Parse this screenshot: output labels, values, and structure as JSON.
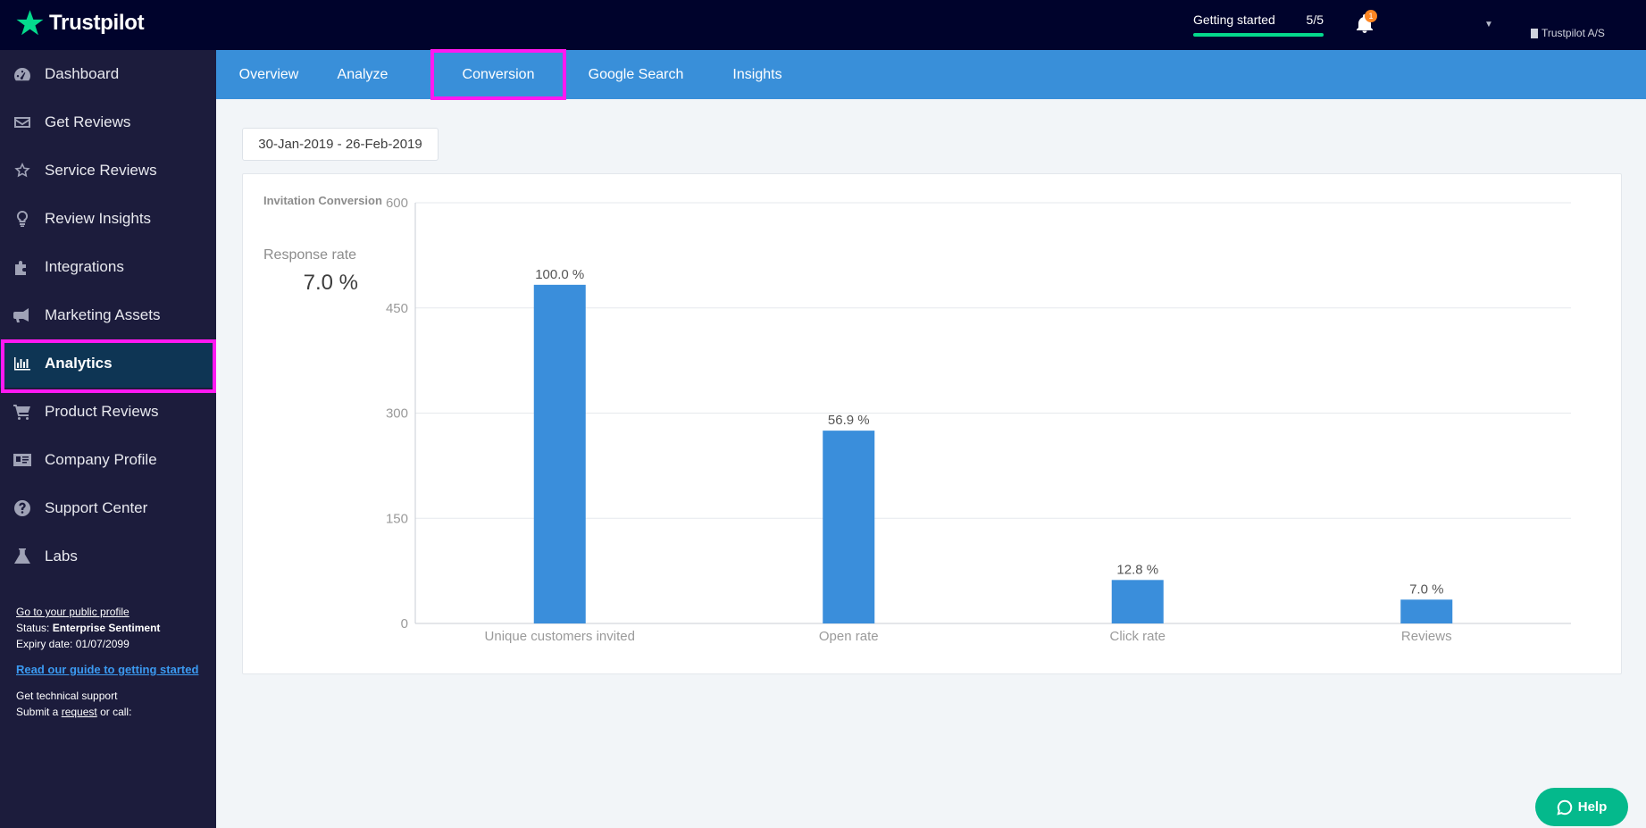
{
  "brand": {
    "name": "Trustpilot"
  },
  "header": {
    "getting_started_label": "Getting started",
    "getting_started_count": "5/5",
    "notification_count": "1",
    "company_name": "Trustpilot A/S"
  },
  "sidebar": {
    "items": [
      {
        "label": "Dashboard",
        "icon": "dashboard-icon"
      },
      {
        "label": "Get Reviews",
        "icon": "envelope-icon"
      },
      {
        "label": "Service Reviews",
        "icon": "star-icon"
      },
      {
        "label": "Review Insights",
        "icon": "lightbulb-icon"
      },
      {
        "label": "Integrations",
        "icon": "puzzle-icon"
      },
      {
        "label": "Marketing Assets",
        "icon": "megaphone-icon"
      },
      {
        "label": "Analytics",
        "icon": "bar-chart-icon",
        "active": true
      },
      {
        "label": "Product Reviews",
        "icon": "cart-icon"
      },
      {
        "label": "Company Profile",
        "icon": "id-card-icon"
      },
      {
        "label": "Support Center",
        "icon": "question-icon"
      },
      {
        "label": "Labs",
        "icon": "flask-icon"
      }
    ],
    "public_profile_link": "Go to your public profile",
    "status_label": "Status:",
    "status_value": "Enterprise Sentiment",
    "expiry_label": "Expiry date:",
    "expiry_value": "01/07/2099",
    "guide_link": "Read our guide to getting started",
    "support_label": "Get technical support",
    "submit_prefix": "Submit a",
    "request_link": "request",
    "submit_suffix": "or call:"
  },
  "tabs": [
    {
      "label": "Overview"
    },
    {
      "label": "Analyze"
    },
    {
      "label": "Conversion",
      "active": true
    },
    {
      "label": "Google Search"
    },
    {
      "label": "Insights"
    }
  ],
  "date_range": "30-Jan-2019 - 26-Feb-2019",
  "card": {
    "title": "Invitation Conversion",
    "response_rate_label": "Response rate",
    "response_rate_value": "7.0 %"
  },
  "chart_data": {
    "type": "bar",
    "title": "",
    "xlabel": "",
    "ylabel": "",
    "ylim": [
      0,
      600
    ],
    "yticks": [
      0,
      150,
      300,
      450,
      600
    ],
    "categories": [
      "Unique customers invited",
      "Open rate",
      "Click rate",
      "Reviews"
    ],
    "values": [
      483,
      275,
      62,
      34
    ],
    "data_labels": [
      "100.0 %",
      "56.9 %",
      "12.8 %",
      "7.0 %"
    ],
    "grid": true,
    "bar_color": "#3a8edb"
  },
  "help": {
    "label": "Help"
  },
  "colors": {
    "accent": "#398fd9",
    "highlight": "#ff19f1",
    "sidebar": "#1c1c3c",
    "topbar": "#00032c",
    "help": "#04b98c"
  }
}
